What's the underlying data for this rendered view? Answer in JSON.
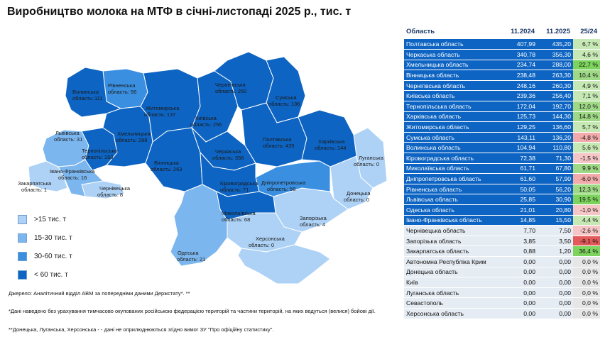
{
  "title": "Виробництво молока на МТФ в січні-листопаді 2025 р., тис. т",
  "legend": [
    {
      "label": ">15 тис. т",
      "color": "#aed2f6"
    },
    {
      "label": "15-30 тис. т",
      "color": "#7cb6ee"
    },
    {
      "label": "30-60 тис. т",
      "color": "#3a8fe0"
    },
    {
      "label": "< 60 тис. т",
      "color": "#0e64c2"
    }
  ],
  "regions": [
    {
      "name": "Волинська",
      "unit": "область:",
      "value": "111"
    },
    {
      "name": "Рівненська",
      "unit": "область: 56",
      "value": ""
    },
    {
      "name": "Житомирська",
      "unit": "область: 137",
      "value": ""
    },
    {
      "name": "Київська",
      "unit": "область: 256",
      "value": ""
    },
    {
      "name": "Чернігівська",
      "unit": "область: 260",
      "value": ""
    },
    {
      "name": "Сумська",
      "unit": "область: 136",
      "value": ""
    },
    {
      "name": "Львівська",
      "unit": "область: 31",
      "value": ""
    },
    {
      "name": "Хмельницька",
      "unit": "область: 288",
      "value": ""
    },
    {
      "name": "Тернопільська",
      "unit": "область: 193",
      "value": ""
    },
    {
      "name": "Вінницька",
      "unit": "область: 263",
      "value": ""
    },
    {
      "name": "Черкаська",
      "unit": "область: 356",
      "value": ""
    },
    {
      "name": "Полтавська",
      "unit": "область: 435",
      "value": ""
    },
    {
      "name": "Харківська",
      "unit": "область: 144",
      "value": ""
    },
    {
      "name": "Луганська",
      "unit": "область: 0",
      "value": ""
    },
    {
      "name": "Івано-Франківська",
      "unit": "область: 16",
      "value": ""
    },
    {
      "name": "Закарпатська",
      "unit": "область: 1",
      "value": ""
    },
    {
      "name": "Чернівецька",
      "unit": "область: 8",
      "value": ""
    },
    {
      "name": "Кіровоградська",
      "unit": "область: 71",
      "value": ""
    },
    {
      "name": "Дніпропетровська",
      "unit": "область: 58",
      "value": ""
    },
    {
      "name": "Донецька",
      "unit": "область: 0",
      "value": ""
    },
    {
      "name": "Миколаївська",
      "unit": "область: 68",
      "value": ""
    },
    {
      "name": "Запорізька",
      "unit": "область: 4",
      "value": ""
    },
    {
      "name": "Одеська",
      "unit": "область: 21",
      "value": ""
    },
    {
      "name": "Херсонська",
      "unit": "область: 0",
      "value": ""
    }
  ],
  "source": "Джерело: Аналітичний відділ АВМ за попередніми даними Держстату*. **",
  "note1": "*Дані наведено без урахування тимчасово окупованих російською федерацією територій та частини територій, на яких ведуться (велися) бойові дії.",
  "note2": "**Донецька, Луганська, Херсонська - - дані не оприлюднюються згідно вимог ЗУ \"Про офіційну статистику\".",
  "table": {
    "headers": [
      "Область",
      "11.2024",
      "11.2025",
      "25/24"
    ],
    "rows": [
      {
        "name": "Полтавська область",
        "v2024": "407,99",
        "v2025": "435,20",
        "pct": "6,7 %",
        "shade": "dark",
        "pc": "g"
      },
      {
        "name": "Черкаська область",
        "v2024": "340,78",
        "v2025": "356,30",
        "pct": "4,6 %",
        "shade": "dark",
        "pc": "g"
      },
      {
        "name": "Хмельницька область",
        "v2024": "234,74",
        "v2025": "288,00",
        "pct": "22,7 %",
        "shade": "dark",
        "pc": "g3"
      },
      {
        "name": "Вінницька область",
        "v2024": "238,48",
        "v2025": "263,30",
        "pct": "10,4 %",
        "shade": "dark",
        "pc": "g2"
      },
      {
        "name": "Чернігівська область",
        "v2024": "248,16",
        "v2025": "260,30",
        "pct": "4,9 %",
        "shade": "dark",
        "pc": "g"
      },
      {
        "name": "Київська область",
        "v2024": "239,36",
        "v2025": "256,40",
        "pct": "7,1 %",
        "shade": "dark",
        "pc": "g"
      },
      {
        "name": "Тернопільська область",
        "v2024": "172,04",
        "v2025": "192,70",
        "pct": "12,0 %",
        "shade": "dark",
        "pc": "g2"
      },
      {
        "name": "Харківська область",
        "v2024": "125,73",
        "v2025": "144,30",
        "pct": "14,8 %",
        "shade": "dark",
        "pc": "g2"
      },
      {
        "name": "Житомирська область",
        "v2024": "129,25",
        "v2025": "136,60",
        "pct": "5,7 %",
        "shade": "dark",
        "pc": "g"
      },
      {
        "name": "Сумська область",
        "v2024": "143,11",
        "v2025": "136,20",
        "pct": "-4,8 %",
        "shade": "dark",
        "pc": "r2"
      },
      {
        "name": "Волинська область",
        "v2024": "104,94",
        "v2025": "110,80",
        "pct": "5,6 %",
        "shade": "dark",
        "pc": "g"
      },
      {
        "name": "Кіровоградська область",
        "v2024": "72,38",
        "v2025": "71,30",
        "pct": "-1,5 %",
        "shade": "dark",
        "pc": "r"
      },
      {
        "name": "Миколаївська область",
        "v2024": "61,71",
        "v2025": "67,80",
        "pct": "9,9 %",
        "shade": "dark",
        "pc": "g2"
      },
      {
        "name": "Дніпропетровська область",
        "v2024": "61,60",
        "v2025": "57,90",
        "pct": "-6,0 %",
        "shade": "dark",
        "pc": "r2"
      },
      {
        "name": "Рівненська область",
        "v2024": "50,05",
        "v2025": "56,20",
        "pct": "12,3 %",
        "shade": "dark",
        "pc": "g2"
      },
      {
        "name": "Львівська область",
        "v2024": "25,85",
        "v2025": "30,90",
        "pct": "19,5 %",
        "shade": "dark",
        "pc": "g3"
      },
      {
        "name": "Одеська область",
        "v2024": "21,01",
        "v2025": "20,80",
        "pct": "-1,0 %",
        "shade": "dark",
        "pc": "r"
      },
      {
        "name": "Івано-Франківська область",
        "v2024": "14,85",
        "v2025": "15,50",
        "pct": "4,4 %",
        "shade": "dark",
        "pc": "g"
      },
      {
        "name": "Чернівецька область",
        "v2024": "7,70",
        "v2025": "7,50",
        "pct": "-2,6 %",
        "shade": "light",
        "pc": "r"
      },
      {
        "name": "Запорізька область",
        "v2024": "3,85",
        "v2025": "3,50",
        "pct": "-9,1 %",
        "shade": "light",
        "pc": "r3"
      },
      {
        "name": "Закарпатська область",
        "v2024": "0,88",
        "v2025": "1,20",
        "pct": "36,4 %",
        "shade": "light",
        "pc": "g3"
      },
      {
        "name": "Автономна Республіка Крим",
        "v2024": "0,00",
        "v2025": "0,00",
        "pct": "0,0 %",
        "shade": "light",
        "pc": "z"
      },
      {
        "name": "Донецька область",
        "v2024": "0,00",
        "v2025": "0,00",
        "pct": "0,0 %",
        "shade": "light",
        "pc": "z"
      },
      {
        "name": "Київ",
        "v2024": "0,00",
        "v2025": "0,00",
        "pct": "0,0 %",
        "shade": "light",
        "pc": "z"
      },
      {
        "name": "Луганська область",
        "v2024": "0,00",
        "v2025": "0,00",
        "pct": "0,0 %",
        "shade": "light",
        "pc": "z"
      },
      {
        "name": "Севастополь",
        "v2024": "0,00",
        "v2025": "0,00",
        "pct": "0,0 %",
        "shade": "light",
        "pc": "z"
      },
      {
        "name": "Херсонська область",
        "v2024": "0,00",
        "v2025": "0,00",
        "pct": "0,0 %",
        "shade": "light",
        "pc": "z"
      }
    ]
  }
}
